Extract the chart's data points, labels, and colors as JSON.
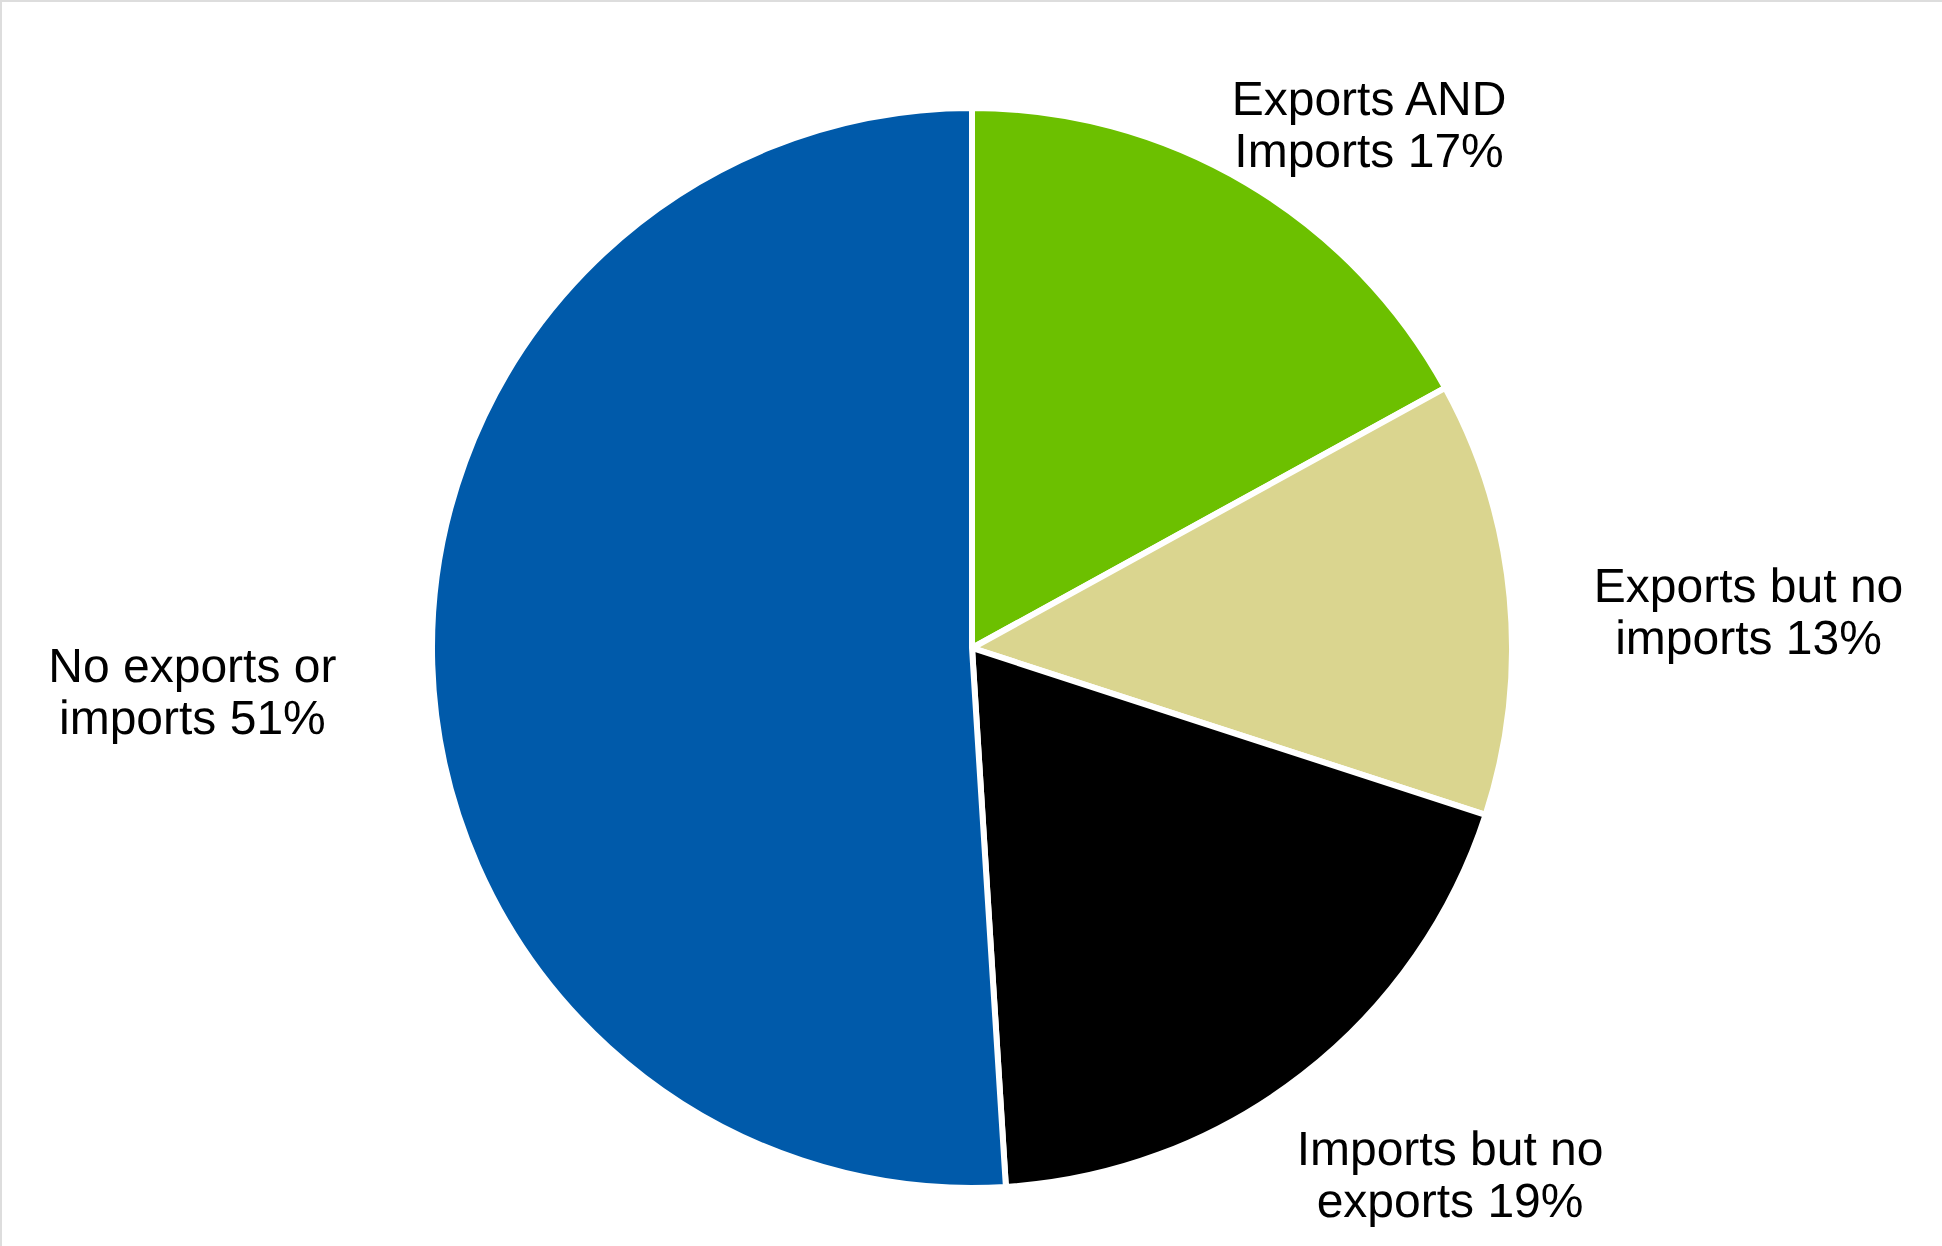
{
  "chart_data": {
    "type": "pie",
    "categories": [
      "Exports AND Imports",
      "Exports but no imports",
      "Imports but no exports",
      "No exports or imports"
    ],
    "values": [
      17,
      13,
      19,
      51
    ],
    "colors": [
      "#6cc000",
      "#dad58f",
      "#000000",
      "#005aaa"
    ],
    "value_labels": [
      "17%",
      "13%",
      "19%",
      "51%"
    ]
  }
}
